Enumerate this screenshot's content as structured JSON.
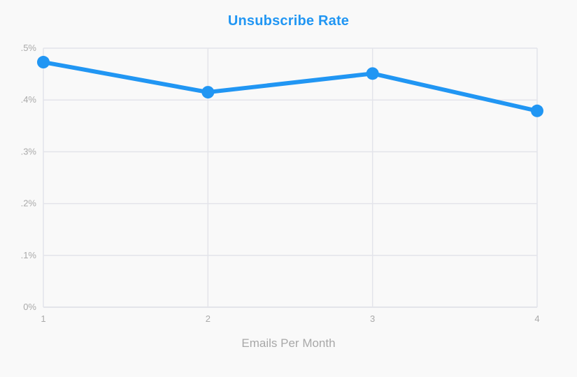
{
  "chart_data": {
    "type": "line",
    "title": "Unsubscribe Rate",
    "xlabel": "Emails Per Month",
    "ylabel": "",
    "x": [
      1,
      2,
      3,
      4
    ],
    "series": [
      {
        "values": [
          0.473,
          0.415,
          0.451,
          0.379
        ],
        "color": "#2196f3"
      }
    ],
    "xlim": [
      1,
      4
    ],
    "ylim": [
      0,
      0.5
    ],
    "x_ticks": [
      1,
      2,
      3,
      4
    ],
    "x_tick_labels": [
      "1",
      "2",
      "3",
      "4"
    ],
    "y_ticks": [
      0,
      0.1,
      0.2,
      0.3,
      0.4,
      0.5
    ],
    "y_tick_labels": [
      "0%",
      ".1%",
      ".2%",
      ".3%",
      ".4%",
      ".5%"
    ],
    "grid": true,
    "colors": {
      "title": "#2196f3",
      "grid": "#e3e4ea",
      "axis_text": "#aaaaaa",
      "background": "#f9f9f9"
    }
  }
}
